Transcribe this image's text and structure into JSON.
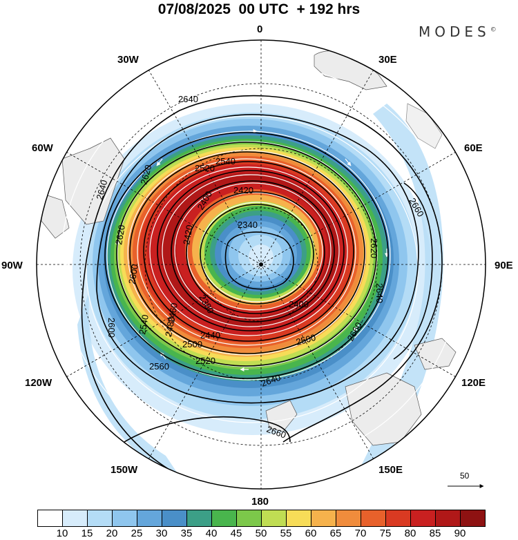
{
  "header": {
    "title": "07/08/2025  00 UTC  + 192 hrs",
    "brand": "MODES",
    "brand_mark": "©"
  },
  "map": {
    "projection": "south-polar-stereographic",
    "longitude_labels": {
      "lon_0": "0",
      "lon_30e": "30E",
      "lon_60e": "60E",
      "lon_90e": "90E",
      "lon_120e": "120E",
      "lon_150e": "150E",
      "lon_180": "180",
      "lon_150w": "150W",
      "lon_120w": "120W",
      "lon_90w": "90W",
      "lon_60w": "60W",
      "lon_30w": "30W"
    },
    "contour_labels": [
      "2640",
      "2620",
      "2540",
      "2520",
      "2420",
      "2400",
      "2340",
      "2600",
      "2660",
      "2620",
      "2640",
      "2660",
      "2640",
      "2660",
      "2560",
      "2520",
      "2500",
      "2480",
      "2460",
      "2440",
      "2420",
      "2400",
      "2380",
      "2520",
      "2560",
      "2600",
      "2620",
      "2640"
    ],
    "contour_label_values": {
      "a": "2640",
      "b": "2640",
      "c": "2620",
      "d": "2620",
      "e": "2600",
      "f": "2600",
      "g": "2560",
      "h": "2540",
      "i": "2540",
      "j": "2520",
      "k": "2520",
      "l": "2500",
      "m": "2480",
      "n": "2460",
      "o": "2440",
      "p": "2420",
      "q": "2420",
      "r": "2400",
      "s": "2400",
      "t": "2380",
      "u": "2340",
      "v": "2660",
      "w": "2660",
      "x": "2620",
      "y": "2640",
      "z": "2660",
      "aa": "2640",
      "ab": "2500"
    },
    "vector_reference": "50",
    "colors": {
      "land": "#ececec",
      "coast": "#555555"
    }
  },
  "colorbar": {
    "ticks": [
      "10",
      "15",
      "20",
      "25",
      "30",
      "35",
      "40",
      "45",
      "50",
      "55",
      "60",
      "65",
      "70",
      "75",
      "80",
      "85",
      "90"
    ],
    "colors": [
      "#ffffff",
      "#d7ecfb",
      "#b4dcf6",
      "#8fc6ee",
      "#64a6db",
      "#4a8fc8",
      "#3c9f87",
      "#49b54d",
      "#7cc84a",
      "#c0dd53",
      "#f7dc58",
      "#f6b24c",
      "#f08c3c",
      "#e8612b",
      "#d93a22",
      "#c92020",
      "#b01818",
      "#8e1212"
    ]
  }
}
